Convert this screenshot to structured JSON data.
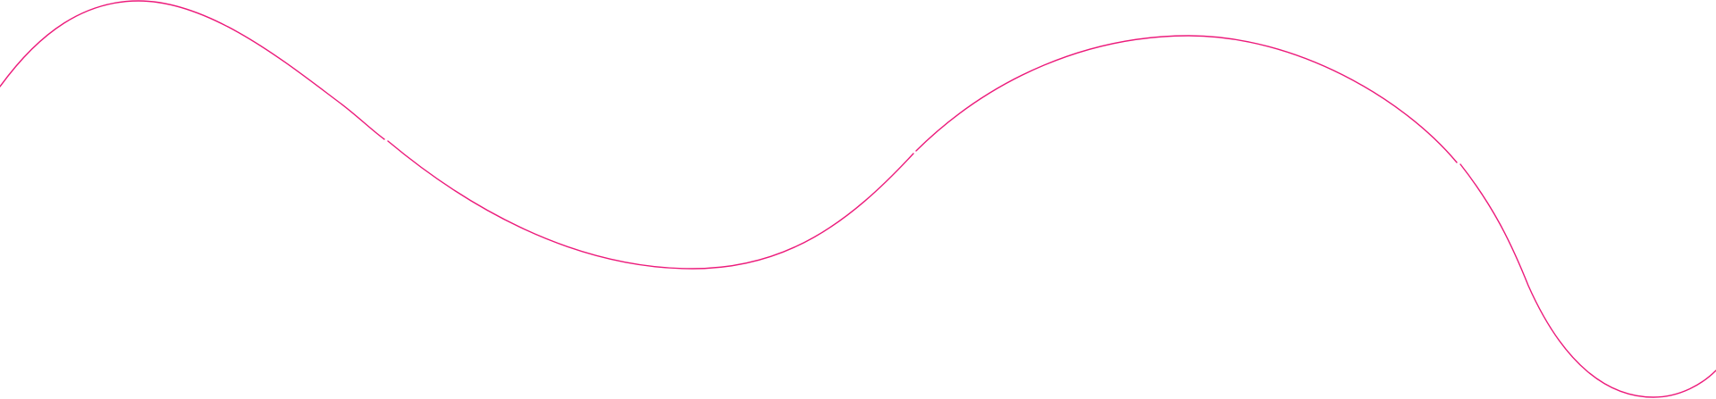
{
  "decoration": {
    "stroke_color": "#ec1b7b",
    "background_color": "#ffffff"
  }
}
